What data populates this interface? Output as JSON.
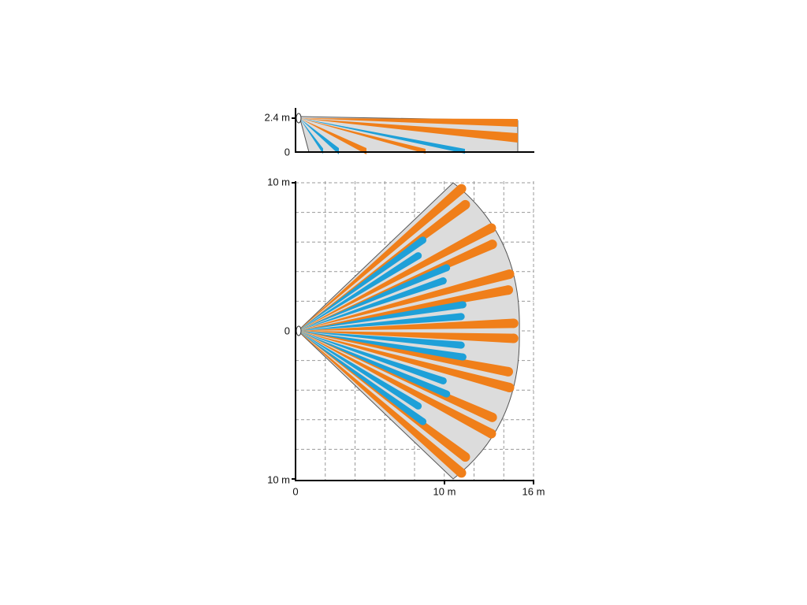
{
  "side_view": {
    "y_axis_top": "2.4 m",
    "y_axis_zero": "0"
  },
  "top_view": {
    "y_axis_top": "10 m",
    "y_axis_zero": "0",
    "y_axis_bottom": "10 m",
    "x_axis_zero": "0",
    "x_axis_mid": "10 m",
    "x_axis_end": "16 m"
  }
}
